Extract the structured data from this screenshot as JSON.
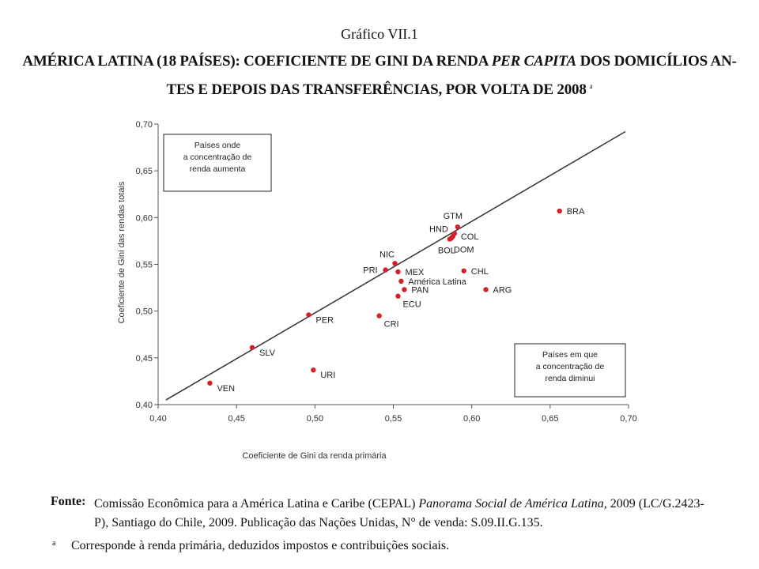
{
  "header": {
    "grafico": "Gráfico VII.1",
    "title_line1_part1": "AMÉRICA LATINA (18 PAÍSES): COEFICIENTE DE GINI DA RENDA ",
    "title_line1_italic": "PER CAPITA",
    "title_line1_part2": " DOS DOMICÍLIOS AN-",
    "title_line2": "TES E DEPOIS DAS TRANSFERÊNCIAS, POR VOLTA DE 2008",
    "title_marker": "a"
  },
  "chart_data": {
    "type": "scatter",
    "xlabel": "Coeficiente de Gini da renda primária",
    "ylabel": "Coeficiente de Gini das rendas totais",
    "xlim": [
      0.4,
      0.7
    ],
    "ylim": [
      0.4,
      0.7
    ],
    "xticks": [
      "0,40",
      "0,45",
      "0,50",
      "0,55",
      "0,60",
      "0,65",
      "0,70"
    ],
    "yticks": [
      "0,40",
      "0,45",
      "0,50",
      "0,55",
      "0,60",
      "0,65",
      "0,70"
    ],
    "tick_values": [
      0.4,
      0.45,
      0.5,
      0.55,
      0.6,
      0.65,
      0.7
    ],
    "grid": false,
    "reference_line": {
      "x": [
        0.405,
        0.698
      ],
      "y": [
        0.405,
        0.692
      ]
    },
    "point_color": "#d42027",
    "points": [
      {
        "label": "BRA",
        "x": 0.656,
        "y": 0.607,
        "label_pos": "right"
      },
      {
        "label": "GTM",
        "x": 0.591,
        "y": 0.59,
        "label_pos": "above"
      },
      {
        "label": "HND",
        "x": 0.589,
        "y": 0.583,
        "label_pos": "left"
      },
      {
        "label": "COL",
        "x": 0.588,
        "y": 0.58,
        "label_pos": "right"
      },
      {
        "label": "BOL",
        "x": 0.586,
        "y": 0.577,
        "label_pos": "below-left"
      },
      {
        "label": "DOM",
        "x": 0.587,
        "y": 0.578,
        "label_pos": "below-right"
      },
      {
        "label": "NIC",
        "x": 0.551,
        "y": 0.551,
        "label_pos": "above-right"
      },
      {
        "label": "PRI",
        "x": 0.545,
        "y": 0.544,
        "label_pos": "left"
      },
      {
        "label": "MEX",
        "x": 0.553,
        "y": 0.542,
        "label_pos": "right"
      },
      {
        "label": "CHL",
        "x": 0.595,
        "y": 0.543,
        "label_pos": "right"
      },
      {
        "label": "América Latina",
        "x": 0.555,
        "y": 0.532,
        "label_pos": "right"
      },
      {
        "label": "ARG",
        "x": 0.609,
        "y": 0.523,
        "label_pos": "right"
      },
      {
        "label": "PAN",
        "x": 0.557,
        "y": 0.523,
        "label_pos": "right"
      },
      {
        "label": "ECU",
        "x": 0.553,
        "y": 0.516,
        "label_pos": "below-right"
      },
      {
        "label": "CRI",
        "x": 0.541,
        "y": 0.495,
        "label_pos": "below-right"
      },
      {
        "label": "PER",
        "x": 0.496,
        "y": 0.496,
        "label_pos": "right-below"
      },
      {
        "label": "SLV",
        "x": 0.46,
        "y": 0.461,
        "label_pos": "right-below"
      },
      {
        "label": "URI",
        "x": 0.499,
        "y": 0.437,
        "label_pos": "right-below"
      },
      {
        "label": "VEN",
        "x": 0.433,
        "y": 0.423,
        "label_pos": "right-below"
      }
    ],
    "annotations": [
      {
        "lines": [
          "Países onde",
          "a concentração de",
          "renda aumenta"
        ],
        "position": "top-left"
      },
      {
        "lines": [
          "Países em que",
          "a concentração de",
          "renda diminui"
        ],
        "position": "bottom-right"
      }
    ]
  },
  "footer": {
    "fonte_label": "Fonte:",
    "fonte_text_1": "Comissão Econômica para a América Latina e Caribe (CEPAL) ",
    "fonte_italic": "Panorama Social de América Latina,",
    "fonte_text_2": " 2009 (LC/G.2423-P), Santiago do Chile, 2009. Publicação das Nações Unidas, N° de venda: S.09.II.G.135.",
    "note_mark": "a",
    "note_text": "Corresponde à renda primária, deduzidos impostos e contribuições sociais."
  }
}
